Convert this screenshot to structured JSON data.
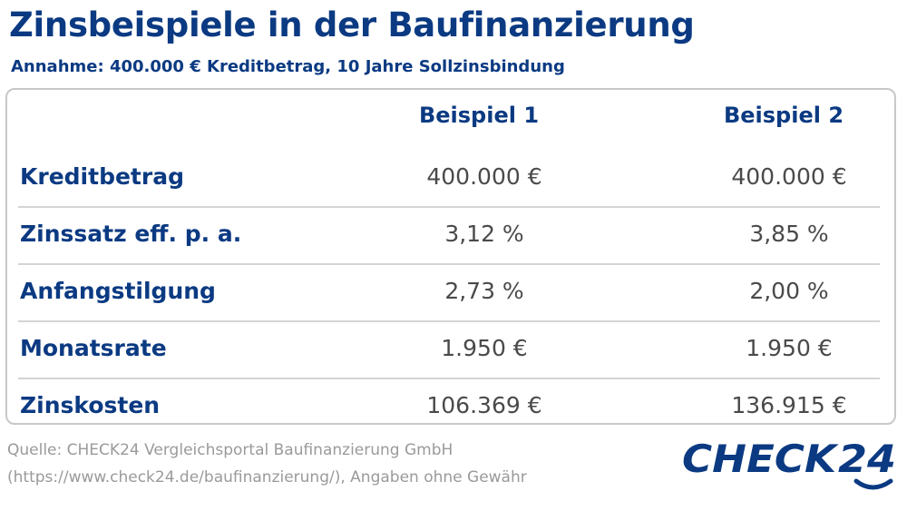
{
  "title": "Zinsbeispiele in der Baufinanzierung",
  "subtitle": "Annahme: 400.000 € Kreditbetrag, 10 Jahre Sollzinsbindung",
  "chart_data": {
    "type": "table",
    "title": "Zinsbeispiele in der Baufinanzierung",
    "subtitle": "Annahme: 400.000 € Kreditbetrag, 10 Jahre Sollzinsbindung",
    "columns": [
      "Beispiel 1",
      "Beispiel 2"
    ],
    "rows": [
      {
        "label": "Kreditbetrag",
        "values": [
          "400.000 €",
          "400.000 €"
        ]
      },
      {
        "label": "Zinssatz eff. p. a.",
        "values": [
          "3,12 %",
          "3,85 %"
        ]
      },
      {
        "label": "Anfangstilgung",
        "values": [
          "2,73 %",
          "2,00 %"
        ]
      },
      {
        "label": "Monatsrate",
        "values": [
          "1.950 €",
          "1.950 €"
        ]
      },
      {
        "label": "Zinskosten",
        "values": [
          "106.369 €",
          "136.915 €"
        ]
      }
    ]
  },
  "source": {
    "line1": "Quelle: CHECK24 Vergleichsportal Baufinanzierung GmbH",
    "line2": "(https://www.check24.de/baufinanzierung/), Angaben ohne Gewähr"
  },
  "logo": {
    "text_check": "CHECK",
    "text_24": "24",
    "color": "#0b3a82"
  },
  "colors": {
    "brand_blue": "#0b3a82",
    "value_gray": "#4a4a4a",
    "source_gray": "#9a9a9a",
    "divider": "#d4d4d4"
  }
}
